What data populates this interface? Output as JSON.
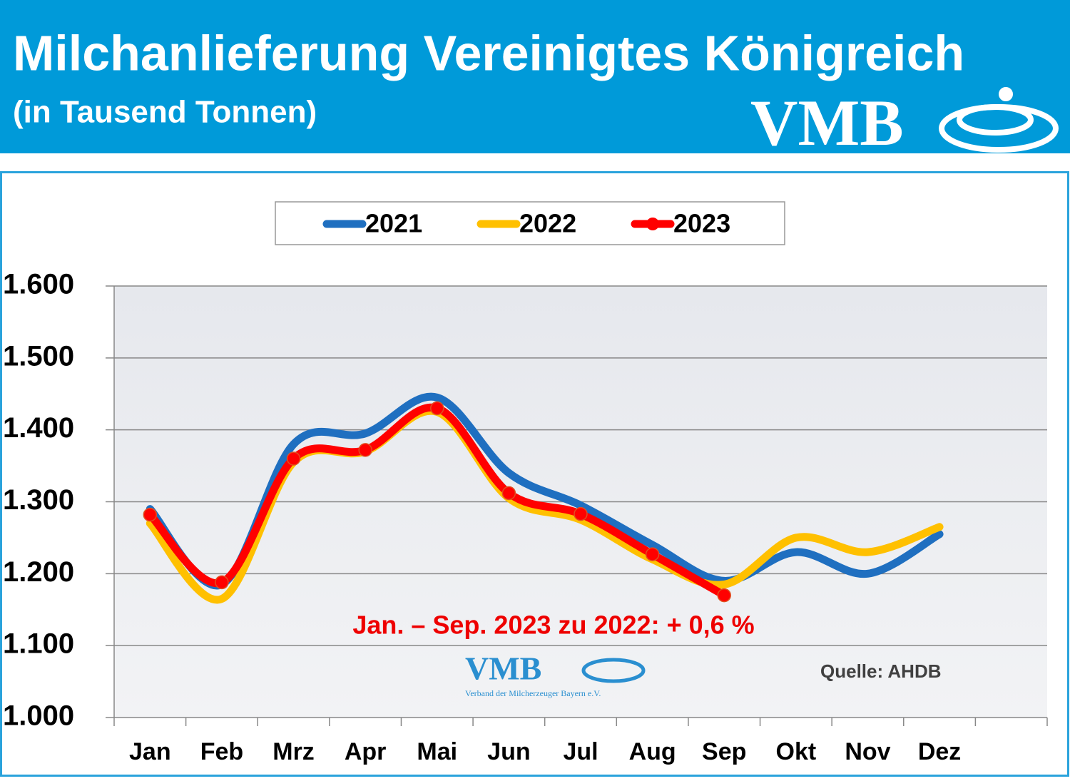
{
  "header": {
    "title": "Milchanlieferung Vereinigtes Königreich",
    "subtitle": "(in Tausend Tonnen)",
    "logo": "VMB"
  },
  "chart_data": {
    "type": "line",
    "categories": [
      "Jan",
      "Feb",
      "Mrz",
      "Apr",
      "Mai",
      "Jun",
      "Jul",
      "Aug",
      "Sep",
      "Okt",
      "Nov",
      "Dez",
      null
    ],
    "series": [
      {
        "name": "2021",
        "color": "#1f6fc0",
        "values": [
          1290,
          1185,
          1380,
          1395,
          1445,
          1340,
          1295,
          1240,
          1190,
          1230,
          1200,
          1255,
          null
        ]
      },
      {
        "name": "2022",
        "color": "#ffc000",
        "values": [
          1270,
          1165,
          1355,
          1370,
          1425,
          1305,
          1275,
          1220,
          1185,
          1250,
          1230,
          1265,
          null
        ]
      },
      {
        "name": "2023",
        "color": "#ff0000",
        "values": [
          1282,
          1188,
          1360,
          1372,
          1430,
          1312,
          1283,
          1227,
          1170,
          null,
          null,
          null,
          null
        ],
        "markers": true
      }
    ],
    "ylim": [
      1000,
      1600
    ],
    "yticks": [
      {
        "value": 1000,
        "label": "1.000"
      },
      {
        "value": 1100,
        "label": "1.100"
      },
      {
        "value": 1200,
        "label": "1.200"
      },
      {
        "value": 1300,
        "label": "1.300"
      },
      {
        "value": 1400,
        "label": "1.400"
      },
      {
        "value": 1500,
        "label": "1.500"
      },
      {
        "value": 1600,
        "label": "1.600"
      }
    ],
    "grid": true,
    "legend": "top",
    "annotation": "Jan. – Sep. 2023 zu 2022: + 0,6 %",
    "source": "Quelle: AHDB",
    "watermark": {
      "text": "VMB",
      "subtitle": "Verband der Milcherzeuger Bayern e.V."
    }
  }
}
